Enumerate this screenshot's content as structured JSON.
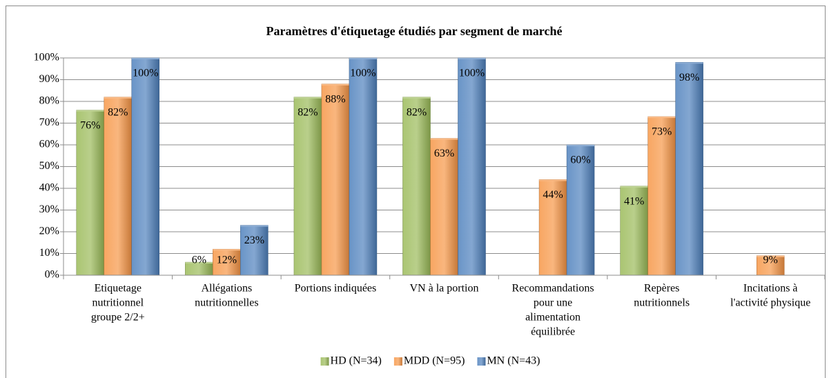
{
  "chart_data": {
    "type": "bar",
    "title": "Paramètres d'étiquetage  étudiés  par segment  de marché",
    "categories": [
      [
        "Etiquetage",
        "nutritionnel",
        "groupe 2/2+"
      ],
      [
        "Allégations",
        "nutritionnelles"
      ],
      [
        "Portions indiquées"
      ],
      [
        "VN à la portion"
      ],
      [
        "Recommandations",
        "pour une",
        "alimentation",
        "équilibrée"
      ],
      [
        "Repères",
        "nutritionnels"
      ],
      [
        "Incitations à",
        "l'activité physique"
      ]
    ],
    "series": [
      {
        "name": "HD (N=34)",
        "color": "#9bbb59",
        "values": [
          76,
          6,
          82,
          82,
          null,
          41,
          null
        ],
        "value_labels": [
          "76%",
          "6%",
          "82%",
          "82%",
          null,
          "41%",
          null
        ]
      },
      {
        "name": "MDD (N=95)",
        "color": "#f79646",
        "values": [
          82,
          12,
          88,
          63,
          44,
          73,
          9
        ],
        "value_labels": [
          "82%",
          "12%",
          "88%",
          "63%",
          "44%",
          "73%",
          "9%"
        ]
      },
      {
        "name": "MN (N=43)",
        "color": "#4f81bd",
        "values": [
          100,
          23,
          100,
          100,
          60,
          98,
          null
        ],
        "value_labels": [
          "100%",
          "23%",
          "100%",
          "100%",
          "60%",
          "98%",
          null
        ]
      }
    ],
    "ylim": [
      0,
      100
    ],
    "yticks": [
      {
        "value": 0,
        "label": "0%"
      },
      {
        "value": 10,
        "label": "10%"
      },
      {
        "value": 20,
        "label": "20%"
      },
      {
        "value": 30,
        "label": "30%"
      },
      {
        "value": 40,
        "label": "40%"
      },
      {
        "value": 50,
        "label": "50%"
      },
      {
        "value": 60,
        "label": "60%"
      },
      {
        "value": 70,
        "label": "70%"
      },
      {
        "value": 80,
        "label": "80%"
      },
      {
        "value": 90,
        "label": "90%"
      },
      {
        "value": 100,
        "label": "100%"
      }
    ],
    "grid": true,
    "legend": "bottom"
  }
}
